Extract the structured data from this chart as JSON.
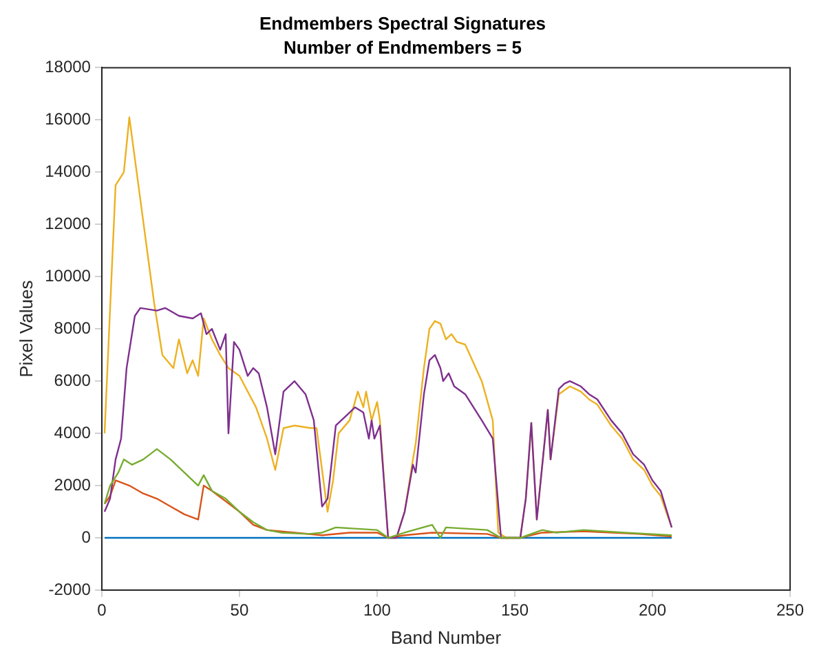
{
  "chart_data": {
    "type": "line",
    "title": "Endmembers Spectral Signatures",
    "subtitle": "Number of Endmembers = 5",
    "xlabel": "Band Number",
    "ylabel": "Pixel Values",
    "xlim": [
      0,
      250
    ],
    "xticks": [
      0,
      50,
      100,
      150,
      200,
      250
    ],
    "ylim": [
      -2000,
      18000
    ],
    "yticks": [
      -2000,
      0,
      2000,
      4000,
      6000,
      8000,
      10000,
      12000,
      14000,
      16000,
      18000
    ],
    "grid": false,
    "legend": false,
    "marker": "none",
    "line_style": "solid",
    "series": [
      {
        "color": "#0072bd",
        "x": [
          1,
          207
        ],
        "values": [
          0,
          0
        ]
      },
      {
        "color": "#d95319",
        "x": [
          1,
          3,
          5,
          10,
          15,
          20,
          25,
          30,
          35,
          37,
          40,
          45,
          50,
          55,
          60,
          70,
          80,
          90,
          100,
          104,
          110,
          120,
          140,
          145,
          152,
          160,
          175,
          195,
          207
        ],
        "values": [
          1300,
          1600,
          2200,
          2000,
          1700,
          1500,
          1200,
          900,
          700,
          2000,
          1800,
          1400,
          1000,
          500,
          300,
          200,
          100,
          200,
          200,
          0,
          100,
          200,
          150,
          0,
          0,
          200,
          250,
          150,
          50
        ]
      },
      {
        "color": "#edb120",
        "x": [
          1,
          5,
          8,
          10,
          19,
          22,
          26,
          28,
          31,
          33,
          35,
          37,
          40,
          43,
          46,
          50,
          56,
          60,
          63,
          66,
          70,
          76,
          78,
          82,
          84,
          86,
          90,
          93,
          95,
          96,
          98,
          100,
          101,
          104,
          107,
          110,
          113,
          114,
          117,
          119,
          121,
          123,
          125,
          127,
          129,
          132,
          138,
          142,
          144,
          147,
          152,
          154,
          156,
          158,
          162,
          163,
          166,
          170,
          174,
          177,
          180,
          185,
          189,
          193,
          197,
          200,
          203,
          207
        ],
        "values": [
          4000,
          13500,
          14000,
          16100,
          9000,
          7000,
          6500,
          7600,
          6300,
          6800,
          6200,
          8400,
          7600,
          7000,
          6500,
          6200,
          5000,
          3800,
          2600,
          4200,
          4300,
          4200,
          4200,
          1000,
          2200,
          4000,
          4500,
          5600,
          5000,
          5600,
          4500,
          5200,
          4500,
          0,
          0,
          1000,
          3000,
          3600,
          6500,
          8000,
          8300,
          8200,
          7600,
          7800,
          7500,
          7400,
          6000,
          4500,
          200,
          0,
          0,
          1500,
          4400,
          700,
          4900,
          3000,
          5500,
          5800,
          5600,
          5300,
          5100,
          4300,
          3800,
          3000,
          2600,
          2000,
          1600,
          400
        ]
      },
      {
        "color": "#7e2f8e",
        "x": [
          1,
          3,
          5,
          7,
          9,
          12,
          14,
          20,
          23,
          28,
          33,
          36,
          38,
          40,
          43,
          45,
          46,
          48,
          50,
          53,
          55,
          57,
          60,
          63,
          66,
          70,
          74,
          77,
          80,
          82,
          85,
          88,
          92,
          95,
          97,
          98,
          99,
          101,
          104,
          107,
          110,
          113,
          114,
          117,
          119,
          121,
          123,
          124,
          126,
          128,
          132,
          138,
          142,
          145,
          152,
          154,
          156,
          158,
          162,
          163,
          166,
          168,
          170,
          174,
          177,
          180,
          185,
          189,
          193,
          197,
          200,
          203,
          207
        ],
        "values": [
          1000,
          1500,
          3000,
          3800,
          6500,
          8500,
          8800,
          8700,
          8800,
          8500,
          8400,
          8600,
          7800,
          8000,
          7200,
          7800,
          4000,
          7500,
          7200,
          6200,
          6500,
          6300,
          5000,
          3200,
          5600,
          6000,
          5500,
          4500,
          1200,
          1500,
          4300,
          4600,
          5000,
          4800,
          3800,
          4500,
          3800,
          4300,
          0,
          0,
          1000,
          2800,
          2500,
          5500,
          6800,
          7000,
          6500,
          6000,
          6300,
          5800,
          5500,
          4500,
          3800,
          0,
          0,
          1500,
          4400,
          700,
          4900,
          3000,
          5700,
          5900,
          6000,
          5800,
          5500,
          5300,
          4500,
          4000,
          3200,
          2800,
          2200,
          1800,
          400
        ]
      },
      {
        "color": "#77ac30",
        "x": [
          1,
          3,
          6,
          8,
          11,
          15,
          20,
          25,
          30,
          35,
          37,
          40,
          45,
          50,
          55,
          60,
          65,
          75,
          80,
          85,
          100,
          104,
          110,
          120,
          123,
          125,
          140,
          145,
          152,
          160,
          165,
          175,
          190,
          207
        ],
        "values": [
          1300,
          2000,
          2500,
          3000,
          2800,
          3000,
          3400,
          3000,
          2500,
          2000,
          2400,
          1800,
          1500,
          1000,
          600,
          300,
          200,
          150,
          200,
          400,
          300,
          0,
          200,
          500,
          0,
          400,
          300,
          0,
          0,
          300,
          200,
          300,
          200,
          100
        ]
      }
    ]
  }
}
